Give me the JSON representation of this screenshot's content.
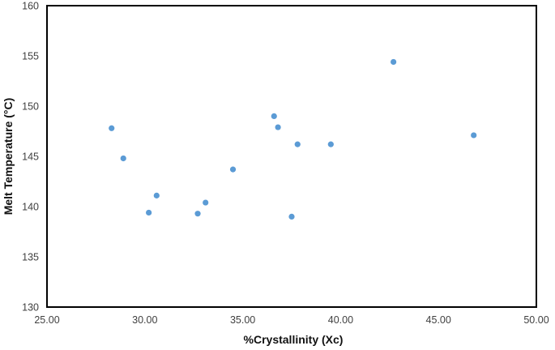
{
  "chart_data": {
    "type": "scatter",
    "title": "",
    "xlabel": "%Crystallinity (Xc)",
    "ylabel": "Melt Temperature (°C)",
    "xlim": [
      25,
      50
    ],
    "ylim": [
      130,
      160
    ],
    "x_ticks": [
      25,
      30,
      35,
      40,
      45,
      50
    ],
    "x_tick_labels": [
      "25.00",
      "30.00",
      "35.00",
      "40.00",
      "45.00",
      "50.00"
    ],
    "y_ticks": [
      130,
      135,
      140,
      145,
      150,
      155,
      160
    ],
    "y_tick_labels": [
      "130",
      "135",
      "140",
      "145",
      "150",
      "155",
      "160"
    ],
    "grid": false,
    "legend": "none",
    "marker_color": "#5B9BD5",
    "series": [
      {
        "points": [
          {
            "x": 28.3,
            "y": 147.8
          },
          {
            "x": 28.9,
            "y": 144.8
          },
          {
            "x": 30.2,
            "y": 139.4
          },
          {
            "x": 30.6,
            "y": 141.1
          },
          {
            "x": 32.7,
            "y": 139.3
          },
          {
            "x": 33.1,
            "y": 140.4
          },
          {
            "x": 34.5,
            "y": 143.7
          },
          {
            "x": 36.6,
            "y": 149.0
          },
          {
            "x": 36.8,
            "y": 147.9
          },
          {
            "x": 37.5,
            "y": 139.0
          },
          {
            "x": 37.8,
            "y": 146.2
          },
          {
            "x": 39.5,
            "y": 146.2
          },
          {
            "x": 42.7,
            "y": 154.4
          },
          {
            "x": 46.8,
            "y": 147.1
          }
        ]
      }
    ]
  }
}
